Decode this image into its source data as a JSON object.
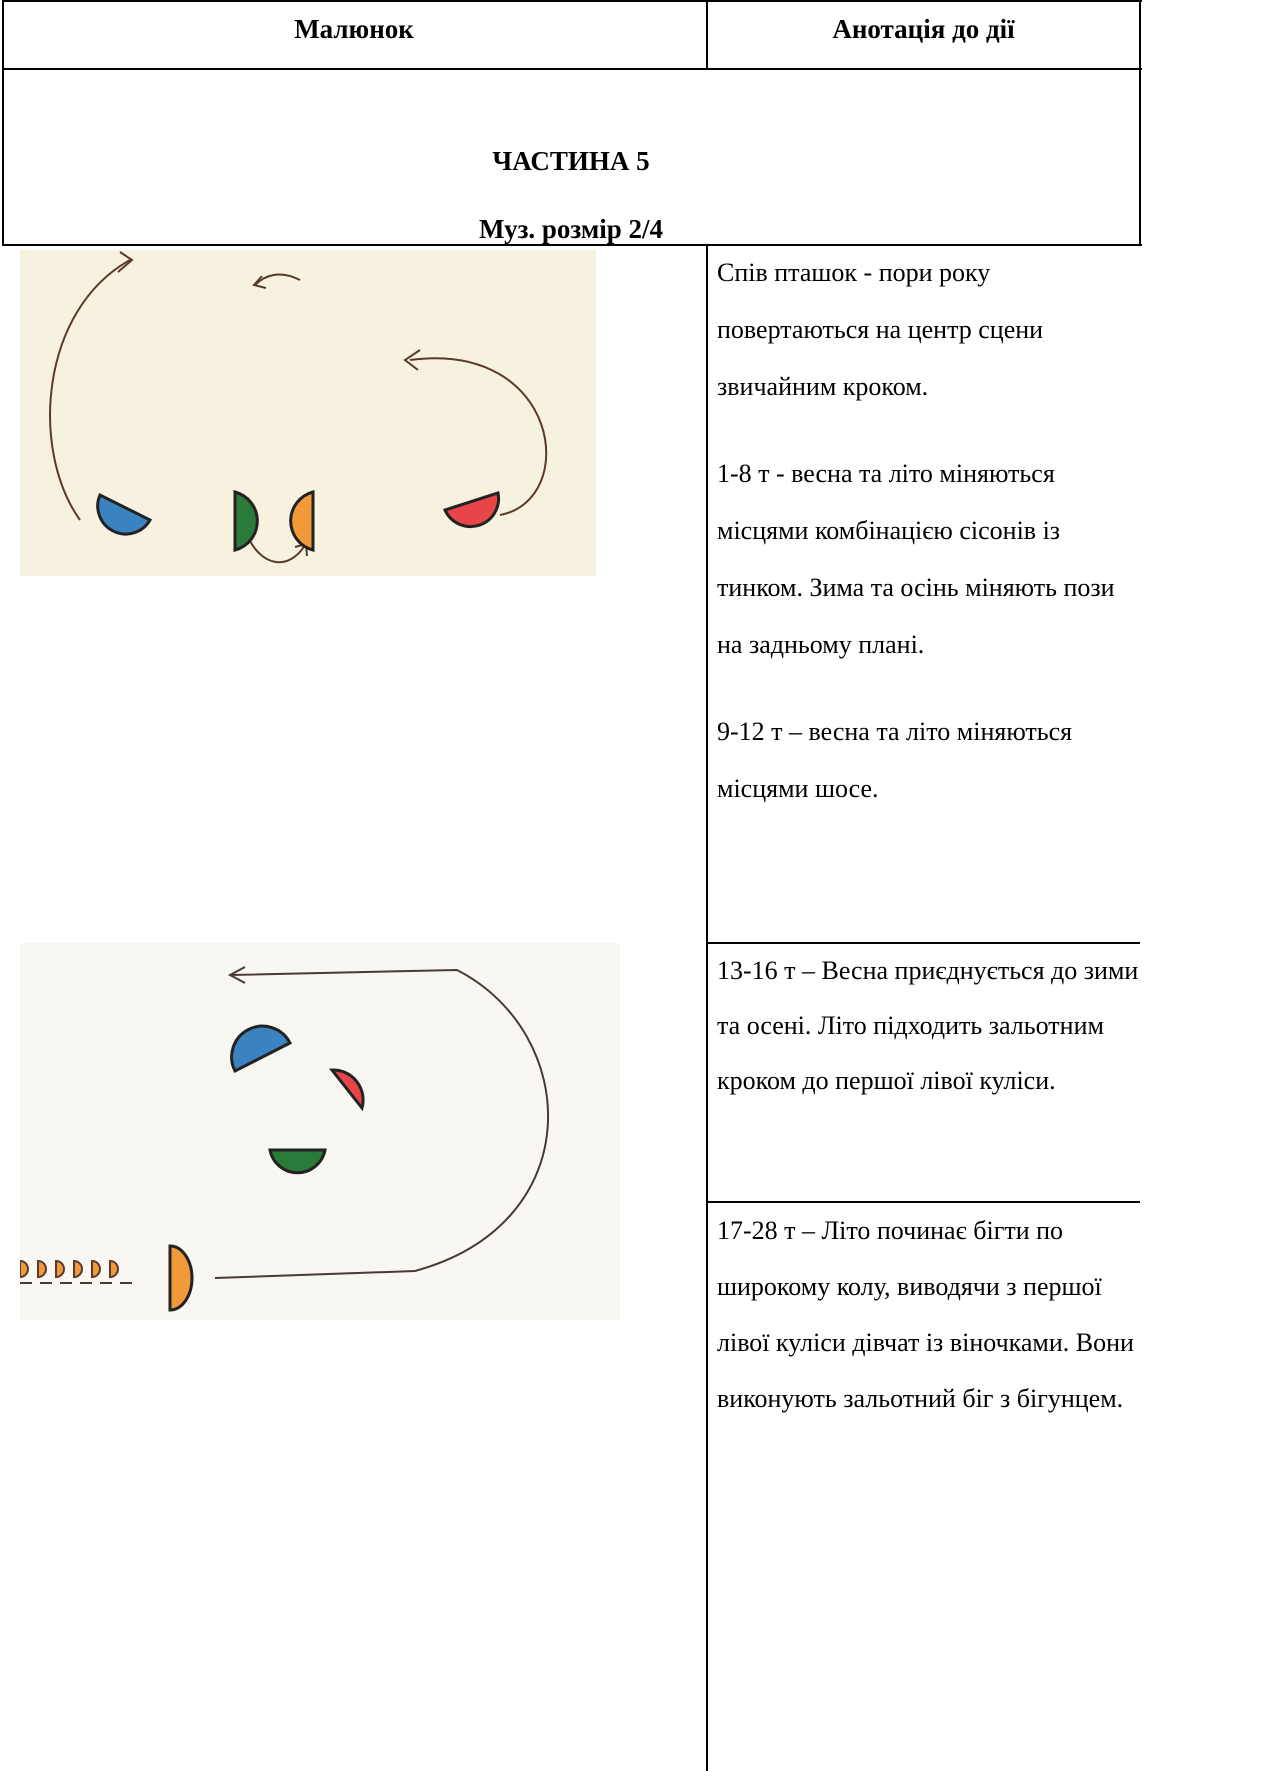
{
  "header": {
    "left": "Малюнок",
    "right": "Анотація до дії"
  },
  "section": {
    "title": "ЧАСТИНА 5",
    "subtitle": "Муз. розмір 2/4"
  },
  "rows": [
    {
      "cells": [
        [
          "Спів пташок - пори року повертаються на центр сцени звичайним кроком.",
          "1-8 т - весна та літо міняються місцями комбінацією сісонів із тинком. Зима та осінь міняють пози на задньому плані.",
          "9-12 т – весна та літо міняються місцями шосе."
        ]
      ]
    },
    {
      "cells": [
        [
          "13-16 т – Весна приєднується до зими та осені. Літо підходить зальотним кроком до першої лівої куліси."
        ],
        [
          "17-28 т – Літо починає бігти по широкому колу, виводячи з першої лівої куліси дівчат із віночками. Вони виконують зальотний біг з бігунцем."
        ]
      ]
    }
  ]
}
